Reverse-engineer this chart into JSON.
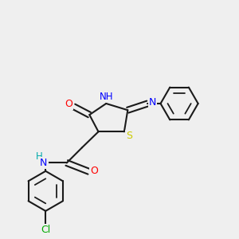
{
  "figure_bg": "#efefef",
  "bond_color": "#1a1a1a",
  "bond_width": 1.5,
  "dbo": 0.012,
  "atom_colors": {
    "S": "#cccc00",
    "N": "#0000ff",
    "O": "#ff0000",
    "Cl": "#00aa00",
    "C": "#1a1a1a",
    "H": "#00aaaa"
  }
}
